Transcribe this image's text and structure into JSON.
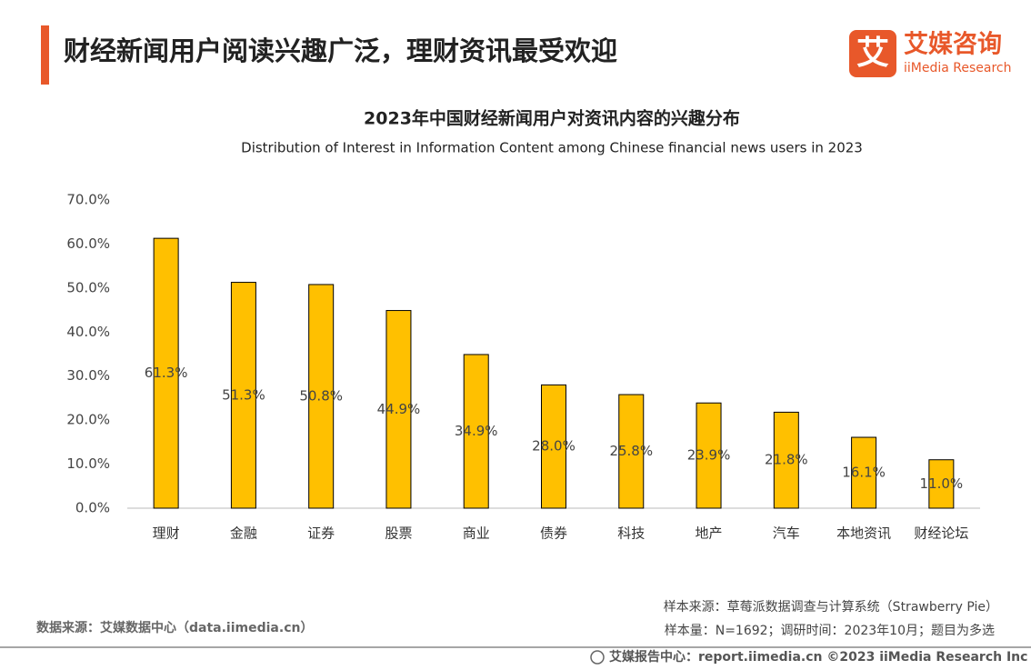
{
  "header": {
    "title": "财经新闻用户阅读兴趣广泛，理财资讯最受欢迎"
  },
  "logo": {
    "icon": "艾",
    "name": "艾媒咨询",
    "english": "iiMedia Research"
  },
  "chart_data": {
    "type": "bar",
    "title": "2023年中国财经新闻用户对资讯内容的兴趣分布",
    "subtitle": "Distribution of Interest in Information Content among Chinese financial news users in 2023",
    "categories": [
      "理财",
      "金融",
      "证券",
      "股票",
      "商业",
      "债券",
      "科技",
      "地产",
      "汽车",
      "本地资讯",
      "财经论坛"
    ],
    "values": [
      61.3,
      51.3,
      50.8,
      44.9,
      34.9,
      28.0,
      25.8,
      23.9,
      21.8,
      16.1,
      11.0
    ],
    "value_labels": [
      "61.3%",
      "51.3%",
      "50.8%",
      "44.9%",
      "34.9%",
      "28.0%",
      "25.8%",
      "23.9%",
      "21.8%",
      "16.1%",
      "11.0%"
    ],
    "color": "#FFC000",
    "ylim": [
      0,
      70
    ],
    "yticks": [
      {
        "value": 0,
        "label": "0.0%"
      },
      {
        "value": 10,
        "label": "10.0%"
      },
      {
        "value": 20,
        "label": "20.0%"
      },
      {
        "value": 30,
        "label": "30.0%"
      },
      {
        "value": 40,
        "label": "40.0%"
      },
      {
        "value": 50,
        "label": "50.0%"
      },
      {
        "value": 60,
        "label": "60.0%"
      },
      {
        "value": 70,
        "label": "70.0%"
      }
    ],
    "grid": false
  },
  "notes": {
    "source": "数据来源：艾媒数据中心（data.iimedia.cn）",
    "sample_source": "样本来源：草莓派数据调查与计算系统（Strawberry Pie）",
    "sample_size": "样本量：N=1692；调研时间：2023年10月；题目为多选"
  },
  "footer": {
    "text": "艾媒报告中心：report.iimedia.cn  ©2023  iiMedia Research  Inc"
  }
}
